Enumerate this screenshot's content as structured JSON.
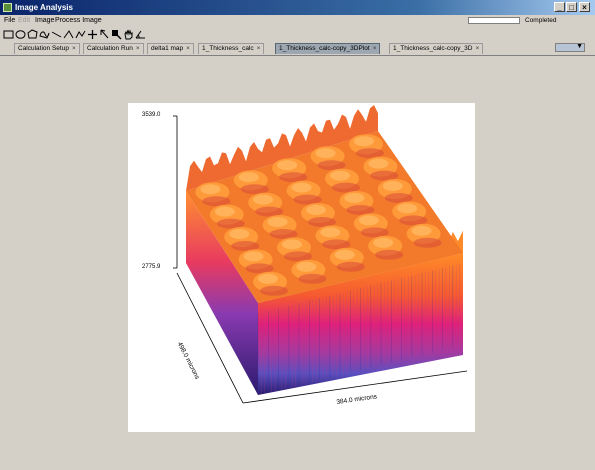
{
  "window": {
    "title": "Image Analysis",
    "controls": {
      "minimize": "_",
      "maximize": "□",
      "close": "×"
    }
  },
  "menu": {
    "items": [
      {
        "label": "File"
      },
      {
        "label": "Edit",
        "disabled": true
      },
      {
        "label": "Image"
      },
      {
        "label": "Process Image"
      }
    ]
  },
  "status": {
    "progress": 0,
    "text": "Completed"
  },
  "toolbar": {
    "tools": [
      "rectangle-tool-icon",
      "ellipse-tool-icon",
      "polygon-tool-icon",
      "freehand-tool-icon",
      "line-tool-icon",
      "angle-tool-icon",
      "polyline-tool-icon",
      "crosshair-tool-icon",
      "pointer-tool-icon",
      "zoom-tool-icon",
      "pan-tool-icon",
      "measure-tool-icon"
    ]
  },
  "tabs": [
    {
      "label": "Calculation Setup",
      "close": "×"
    },
    {
      "label": "Calculation Run",
      "close": "×"
    },
    {
      "label": "delta1 map",
      "close": "×"
    },
    {
      "label": "1_Thickness_calc",
      "close": "×"
    },
    {
      "label": "1_Thickness_calc-copy_3DPlot",
      "close": "×",
      "active": true
    },
    {
      "label": "1_Thickness_calc-copy_3D",
      "close": "×"
    }
  ],
  "tab_scroll": {
    "arrow": "▼"
  },
  "plot": {
    "z_max": "3539.0",
    "z_min": "2775.9",
    "x_label": "384.0 microns",
    "y_label": "498.0 microns",
    "colormap": [
      "#2a1a6e",
      "#3a3fa0",
      "#5a4fc0",
      "#a53aa0",
      "#e0207a",
      "#f55a30",
      "#ff8c28",
      "#ffb060"
    ]
  }
}
